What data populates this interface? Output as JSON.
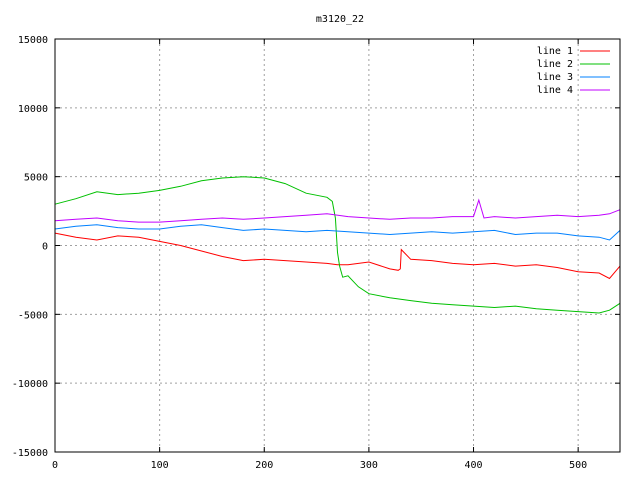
{
  "chart_data": {
    "type": "line",
    "title": "m3120_22",
    "xlabel": "",
    "ylabel": "",
    "xlim": [
      0,
      540
    ],
    "ylim": [
      -15000,
      15000
    ],
    "x_ticks": [
      0,
      100,
      200,
      300,
      400,
      500
    ],
    "y_ticks": [
      -15000,
      -10000,
      -5000,
      0,
      5000,
      10000,
      15000
    ],
    "grid": true,
    "legend_position": "top-right",
    "series": [
      {
        "name": "line 1",
        "color": "#ff0000",
        "x": [
          0,
          20,
          40,
          60,
          80,
          100,
          120,
          140,
          160,
          180,
          200,
          220,
          240,
          260,
          270,
          280,
          300,
          320,
          328,
          330,
          331,
          340,
          360,
          380,
          400,
          420,
          440,
          460,
          480,
          500,
          520,
          530,
          540
        ],
        "y": [
          900,
          600,
          400,
          700,
          600,
          300,
          0,
          -400,
          -800,
          -1100,
          -1000,
          -1100,
          -1200,
          -1300,
          -1400,
          -1400,
          -1200,
          -1700,
          -1800,
          -1700,
          -300,
          -1000,
          -1100,
          -1300,
          -1400,
          -1300,
          -1500,
          -1400,
          -1600,
          -1900,
          -2000,
          -2400,
          -1500
        ]
      },
      {
        "name": "line 2",
        "color": "#00c000",
        "x": [
          0,
          20,
          40,
          60,
          80,
          100,
          120,
          140,
          160,
          180,
          200,
          220,
          240,
          260,
          265,
          268,
          270,
          272,
          275,
          280,
          285,
          290,
          300,
          320,
          340,
          360,
          380,
          400,
          420,
          440,
          460,
          480,
          500,
          520,
          530,
          540
        ],
        "y": [
          3000,
          3400,
          3900,
          3700,
          3800,
          4000,
          4300,
          4700,
          4900,
          5000,
          4900,
          4500,
          3800,
          3500,
          3200,
          2000,
          -500,
          -1500,
          -2300,
          -2200,
          -2600,
          -3000,
          -3500,
          -3800,
          -4000,
          -4200,
          -4300,
          -4400,
          -4500,
          -4400,
          -4600,
          -4700,
          -4800,
          -4900,
          -4700,
          -4200
        ]
      },
      {
        "name": "line 3",
        "color": "#0080ff",
        "x": [
          0,
          20,
          40,
          60,
          80,
          100,
          120,
          140,
          160,
          180,
          200,
          220,
          240,
          260,
          280,
          300,
          320,
          340,
          360,
          380,
          400,
          420,
          440,
          460,
          480,
          500,
          520,
          530,
          540
        ],
        "y": [
          1200,
          1400,
          1500,
          1300,
          1200,
          1200,
          1400,
          1500,
          1300,
          1100,
          1200,
          1100,
          1000,
          1100,
          1000,
          900,
          800,
          900,
          1000,
          900,
          1000,
          1100,
          800,
          900,
          900,
          700,
          600,
          400,
          1100
        ]
      },
      {
        "name": "line 4",
        "color": "#c000ff",
        "x": [
          0,
          20,
          40,
          60,
          80,
          100,
          120,
          140,
          160,
          180,
          200,
          220,
          240,
          260,
          280,
          300,
          320,
          340,
          360,
          380,
          400,
          405,
          410,
          420,
          440,
          460,
          480,
          500,
          520,
          530,
          540
        ],
        "y": [
          1800,
          1900,
          2000,
          1800,
          1700,
          1700,
          1800,
          1900,
          2000,
          1900,
          2000,
          2100,
          2200,
          2300,
          2100,
          2000,
          1900,
          2000,
          2000,
          2100,
          2100,
          3300,
          2000,
          2100,
          2000,
          2100,
          2200,
          2100,
          2200,
          2300,
          2600
        ]
      }
    ]
  }
}
